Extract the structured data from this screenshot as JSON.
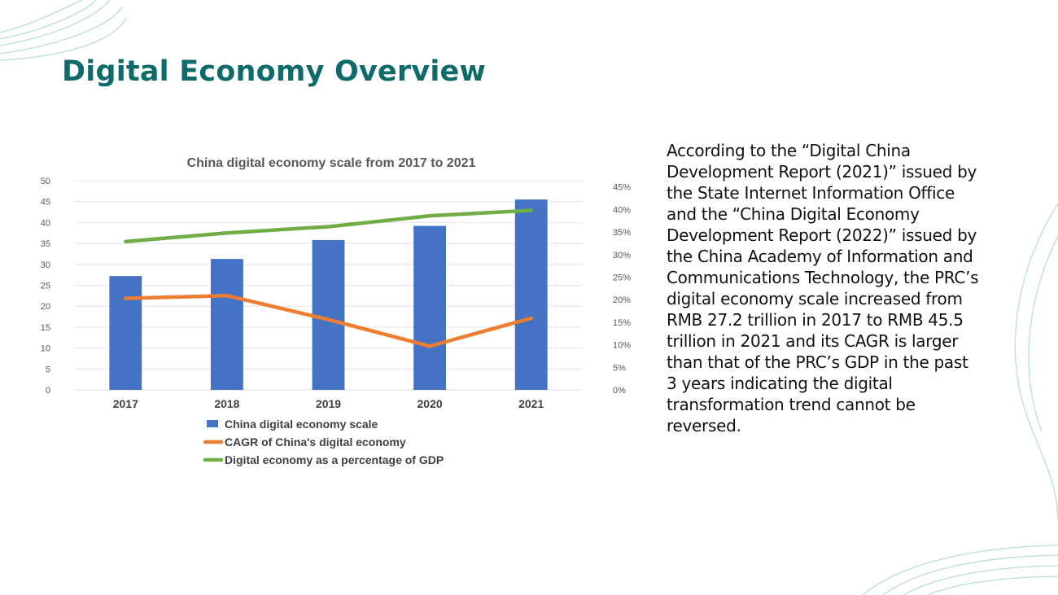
{
  "title": "Digital Economy Overview",
  "body_text": "According to the “Digital China Development Report (2021)” issued by the State Internet Information Office and the “China Digital Economy Development Report (2022)” issued by the China Academy of Information and Communications Technology, the PRC’s digital economy scale increased from RMB 27.2 trillion in 2017 to RMB 45.5 trillion in 2021 and its CAGR is larger than that of the PRC’s GDP in the past 3 years indicating the digital transformation trend cannot be reversed.",
  "colors": {
    "accent": "#0e6b6a",
    "bar": "#4472c4",
    "cagr": "#ed7d31",
    "gdp": "#70ad47",
    "deco": "#b9ddd8"
  },
  "chart_data": {
    "type": "bar",
    "title": "China digital economy scale from 2017 to 2021",
    "categories": [
      "2017",
      "2018",
      "2019",
      "2020",
      "2021"
    ],
    "series": [
      {
        "name": "China digital economy scale",
        "type": "bar",
        "axis": "left",
        "values": [
          27.2,
          31.3,
          35.8,
          39.2,
          45.5
        ]
      },
      {
        "name": "CAGR of China's digital economy",
        "type": "line",
        "axis": "right",
        "values": [
          20.3,
          20.9,
          15.6,
          9.7,
          15.9
        ]
      },
      {
        "name": "Digital economy as a percentage of GDP",
        "type": "line",
        "axis": "right",
        "values": [
          32.9,
          34.8,
          36.2,
          38.6,
          39.8
        ]
      }
    ],
    "left_axis": {
      "min": 0,
      "max": 50,
      "step": 5,
      "ticks": [
        "0",
        "5",
        "10",
        "15",
        "20",
        "25",
        "30",
        "35",
        "40",
        "45",
        "50"
      ]
    },
    "right_axis": {
      "min": 0,
      "max": 45,
      "step": 5,
      "ticks": [
        "0%",
        "5%",
        "10%",
        "15%",
        "20%",
        "25%",
        "30%",
        "35%",
        "40%",
        "45%"
      ]
    },
    "grid": true,
    "legend": "bottom"
  }
}
